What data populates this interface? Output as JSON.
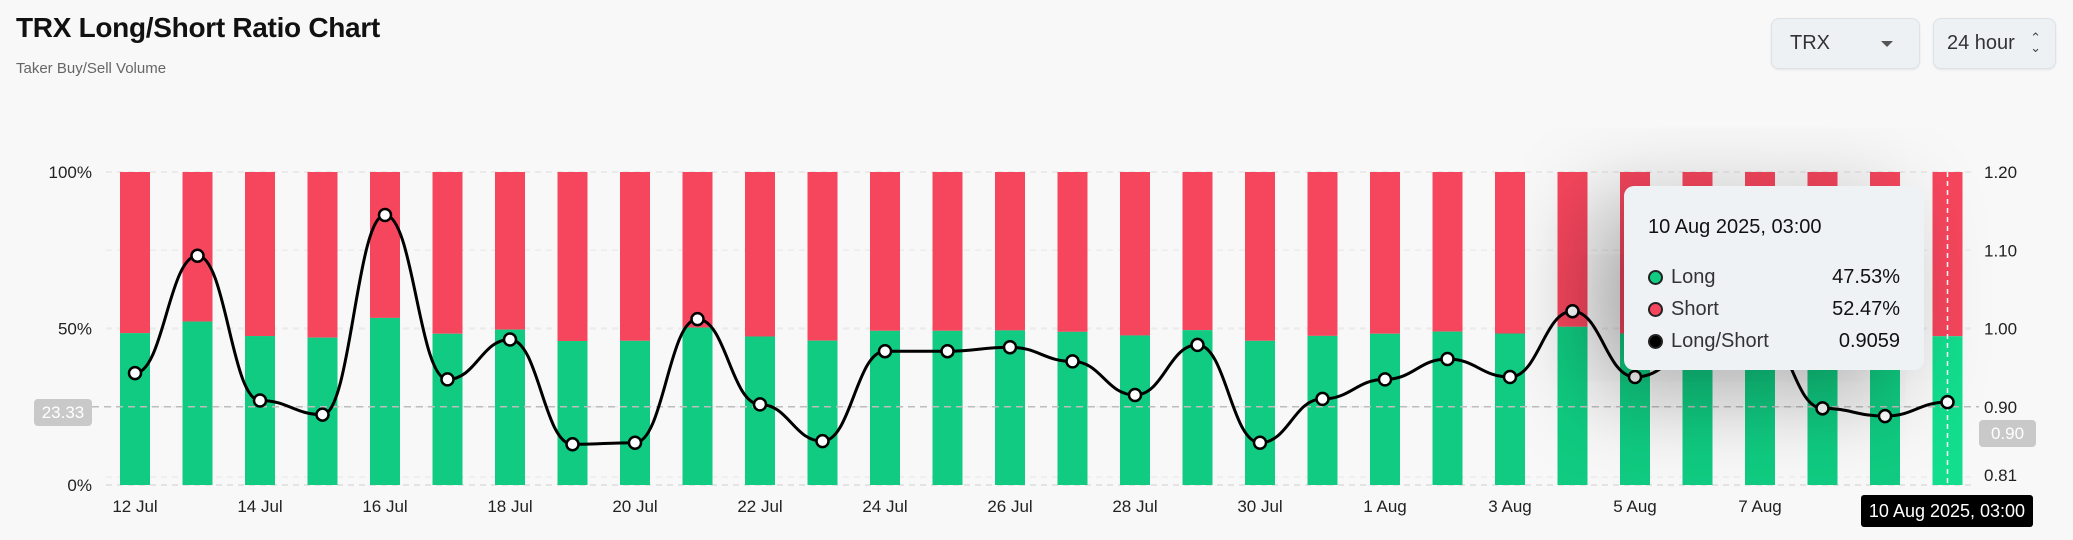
{
  "header": {
    "title": "TRX Long/Short Ratio Chart",
    "subtitle": "Taker Buy/Sell Volume"
  },
  "controls": {
    "coin": "TRX",
    "period": "24 hour"
  },
  "colors": {
    "long": "#10cb81",
    "short": "#f6465d",
    "line": "#000000"
  },
  "tooltip": {
    "date": "10 Aug 2025, 03:00",
    "rows": [
      {
        "label": "Long",
        "value": "47.53%",
        "color": "#10cb81"
      },
      {
        "label": "Short",
        "value": "52.47%",
        "color": "#f6465d"
      },
      {
        "label": "Long/Short",
        "value": "0.9059",
        "color": "#000000"
      }
    ]
  },
  "crosshair": {
    "left_value": "23.33",
    "right_value": "0.90",
    "x_label": "10 Aug 2025, 03:00"
  },
  "chart_data": {
    "type": "bar",
    "title": "TRX Long/Short Ratio Chart",
    "categories": [
      "12 Jul",
      "13 Jul",
      "14 Jul",
      "15 Jul",
      "16 Jul",
      "17 Jul",
      "18 Jul",
      "19 Jul",
      "20 Jul",
      "21 Jul",
      "22 Jul",
      "23 Jul",
      "24 Jul",
      "25 Jul",
      "26 Jul",
      "27 Jul",
      "28 Jul",
      "29 Jul",
      "30 Jul",
      "31 Jul",
      "1 Aug",
      "2 Aug",
      "3 Aug",
      "4 Aug",
      "5 Aug",
      "6 Aug",
      "7 Aug",
      "8 Aug",
      "9 Aug",
      "10 Aug"
    ],
    "x_tick_labels": [
      "12 Jul",
      "14 Jul",
      "16 Jul",
      "18 Jul",
      "20 Jul",
      "22 Jul",
      "24 Jul",
      "26 Jul",
      "28 Jul",
      "30 Jul",
      "1 Aug",
      "3 Aug",
      "5 Aug",
      "7 Aug"
    ],
    "series": [
      {
        "name": "Long",
        "type": "stacked-bar",
        "axis": "left",
        "values": [
          48.53,
          52.22,
          47.59,
          47.09,
          53.38,
          48.32,
          49.65,
          46.0,
          46.06,
          50.3,
          47.45,
          46.12,
          49.26,
          49.26,
          49.39,
          48.93,
          47.78,
          49.47,
          46.06,
          47.64,
          48.32,
          49.01,
          48.4,
          50.54,
          48.4,
          49.24,
          50.0,
          47.31,
          47.03,
          47.53
        ]
      },
      {
        "name": "Short",
        "type": "stacked-bar",
        "axis": "left",
        "values": [
          51.47,
          47.78,
          52.41,
          52.91,
          46.62,
          51.68,
          50.35,
          54.0,
          53.94,
          49.7,
          52.55,
          53.88,
          50.74,
          50.74,
          50.61,
          51.07,
          52.22,
          50.53,
          53.94,
          52.36,
          51.68,
          50.99,
          51.6,
          49.46,
          51.6,
          50.76,
          50.0,
          52.69,
          52.97,
          52.47
        ]
      },
      {
        "name": "Long/Short",
        "type": "line",
        "axis": "right",
        "values": [
          0.943,
          1.093,
          0.908,
          0.89,
          1.145,
          0.935,
          0.986,
          0.852,
          0.854,
          1.012,
          0.903,
          0.856,
          0.971,
          0.971,
          0.976,
          0.958,
          0.915,
          0.979,
          0.854,
          0.91,
          0.935,
          0.961,
          0.938,
          1.022,
          0.938,
          0.97,
          1.0,
          0.898,
          0.888,
          0.9059
        ]
      }
    ],
    "left_axis": {
      "ticks": [
        "0%",
        "50%",
        "100%"
      ],
      "range": [
        0,
        100
      ]
    },
    "right_axis": {
      "ticks": [
        "0.81",
        "0.90",
        "1.00",
        "1.10",
        "1.20"
      ],
      "range": [
        0.8,
        1.2
      ]
    },
    "grid": true,
    "legend": "tooltip"
  }
}
